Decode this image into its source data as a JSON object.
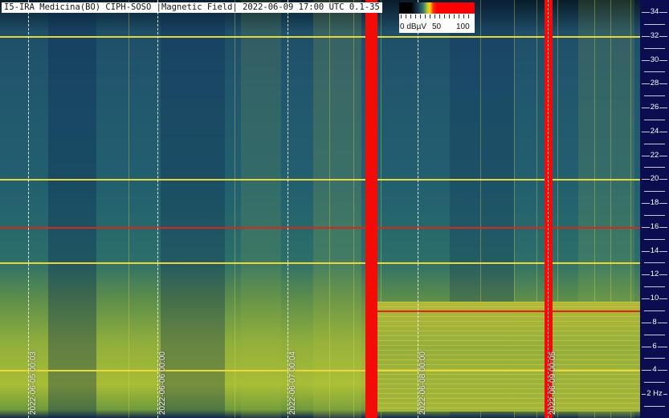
{
  "title": "I5-IRA Medicina(BO) CIPH-SOSO |Magnetic Field| 2022-06-09 17:00 UTC 0.1-35",
  "colorbar": {
    "labels": [
      "0 dBµV",
      "50",
      "100"
    ],
    "colors": [
      "#000000",
      "#3a7a6a",
      "#ffd000",
      "#ff0000"
    ]
  },
  "frequency_axis": {
    "unit": "Hz",
    "ticks": [
      {
        "value": 34,
        "label": "34"
      },
      {
        "value": 32,
        "label": "32"
      },
      {
        "value": 30,
        "label": "30"
      },
      {
        "value": 28,
        "label": "28"
      },
      {
        "value": 26,
        "label": "26"
      },
      {
        "value": 24,
        "label": "24"
      },
      {
        "value": 22,
        "label": "22"
      },
      {
        "value": 20,
        "label": "20"
      },
      {
        "value": 18,
        "label": "18"
      },
      {
        "value": 16,
        "label": "16"
      },
      {
        "value": 14,
        "label": "14"
      },
      {
        "value": 12,
        "label": "12"
      },
      {
        "value": 10,
        "label": "10"
      },
      {
        "value": 8,
        "label": "8"
      },
      {
        "value": 6,
        "label": "6"
      },
      {
        "value": 4,
        "label": "4"
      },
      {
        "value": 2,
        "label": "2 Hz"
      }
    ]
  },
  "date_markers": [
    "2022-06-05 00:03",
    "2022-06-06 00:00",
    "2022-06-07 00:04",
    "2022-06-08 00:00",
    "2022-06-09 00:05"
  ],
  "lines": {
    "yellow_hz": [
      32,
      20,
      13,
      4
    ],
    "red_hz": [
      16,
      9
    ]
  },
  "colors": {
    "background": "#0b0d50",
    "red": "#f20c05",
    "yellow": "#e8d83a"
  }
}
